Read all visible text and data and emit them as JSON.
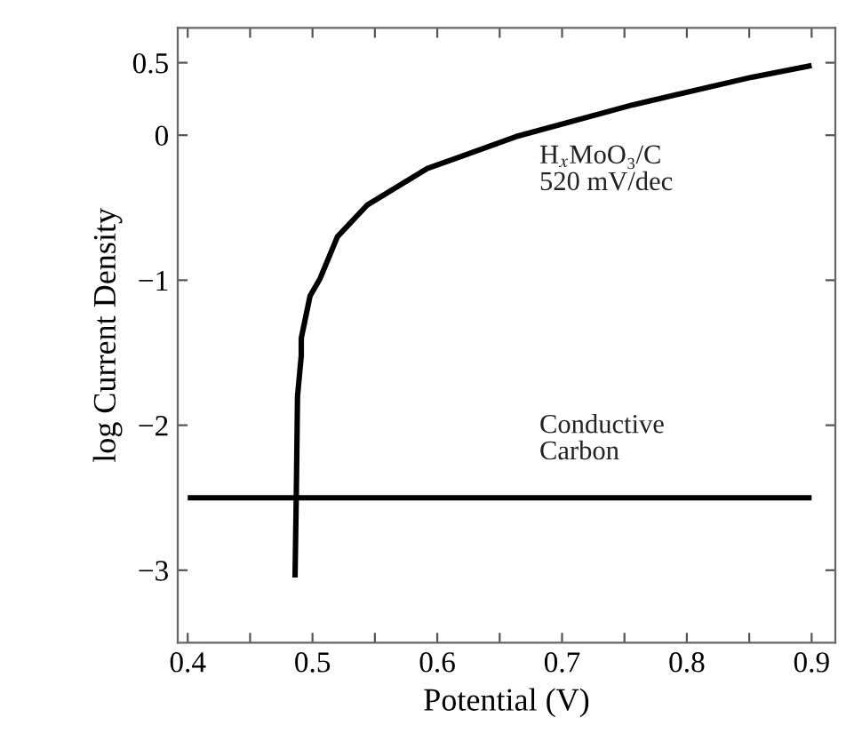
{
  "chart_data": {
    "type": "line",
    "xlabel": "Potential (V)",
    "ylabel": "log Current Density",
    "xlim": [
      0.392,
      0.919
    ],
    "ylim": [
      -3.5,
      0.74
    ],
    "xticks": [
      0.4,
      {
        "value": 0.45,
        "label": null
      },
      0.5,
      {
        "value": 0.55,
        "label": null
      },
      0.6,
      {
        "value": 0.65,
        "label": null
      },
      0.7,
      {
        "value": 0.75,
        "label": null
      },
      0.8,
      {
        "value": 0.85,
        "label": null
      },
      0.9
    ],
    "yticks": [
      0.5,
      0,
      -1,
      -2,
      -3
    ],
    "grid": false,
    "marker": "none",
    "line_style": "solid",
    "series": [
      {
        "color": "#000000",
        "x": [
          0.486,
          0.487,
          0.488,
          0.491,
          0.491,
          0.498,
          0.506,
          0.52,
          0.544,
          0.592,
          0.663,
          0.757,
          0.852,
          0.9
        ],
        "values": [
          -3.05,
          -2.49,
          -1.8,
          -1.52,
          -1.4,
          -1.11,
          -0.99,
          -0.7,
          -0.48,
          -0.23,
          -0.01,
          0.21,
          0.4,
          0.48
        ]
      },
      {
        "color": "#000000",
        "x": [
          0.4,
          0.9
        ],
        "values": [
          -2.5,
          -2.5
        ]
      }
    ],
    "annotations": [
      "H$_{x}$MoO₃/C\n520 mV/dec",
      "Conductive\nCarbon"
    ]
  }
}
